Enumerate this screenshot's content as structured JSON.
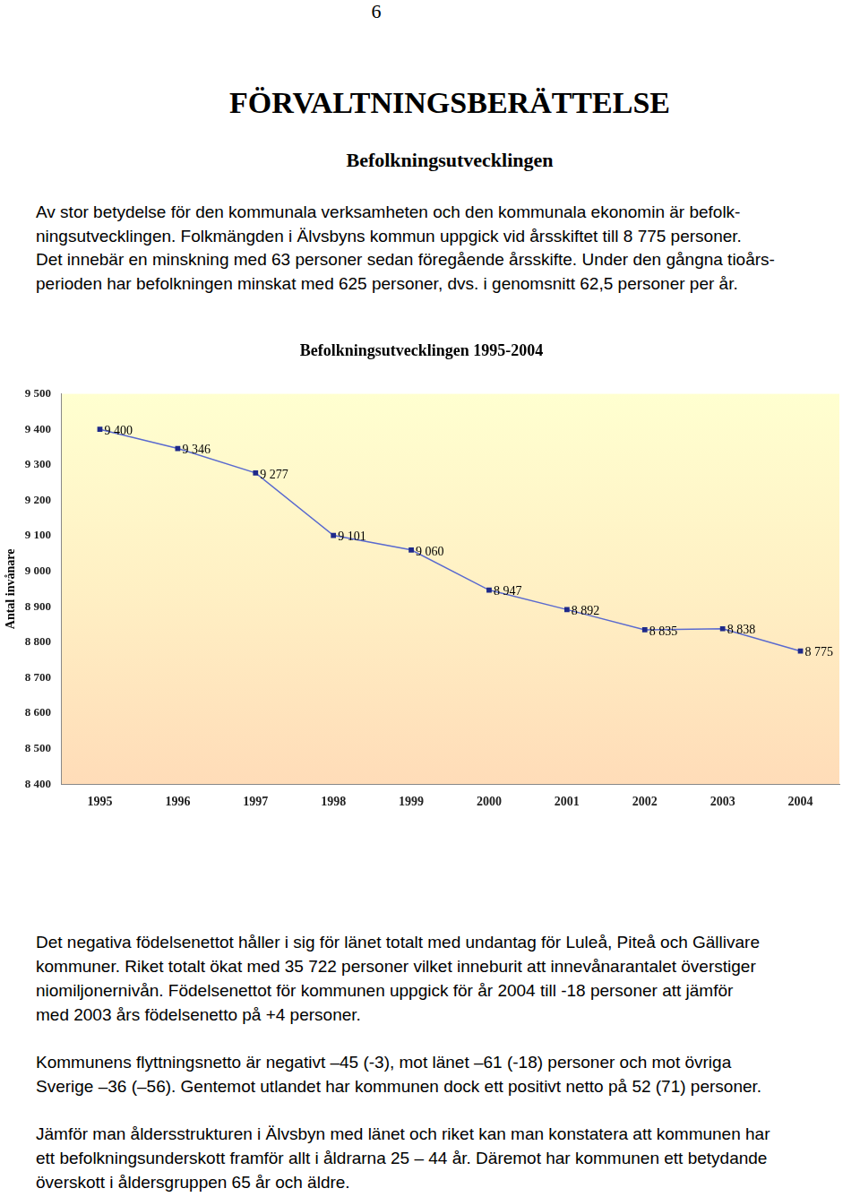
{
  "page_number": "6",
  "header": {
    "title": "FÖRVALTNINGSBERÄTTELSE",
    "subtitle": "Befolkningsutvecklingen"
  },
  "intro": {
    "lines": [
      "Av stor betydelse för den kommunala verksamheten och den kommunala ekonomin är befolk-",
      "ningsutvecklingen. Folkmängden i Älvsbyns kommun uppgick vid årsskiftet till 8 775 personer.",
      "Det innebär en minskning med 63 personer sedan föregående årsskifte. Under den gångna tioårs-",
      "perioden har befolkningen minskat med 625 personer, dvs. i genomsnitt 62,5 personer per år."
    ]
  },
  "chart_data": {
    "type": "line",
    "title": "Befolkningsutvecklingen 1995-2004",
    "y_label": "Antal invånare",
    "categories": [
      "1995",
      "1996",
      "1997",
      "1998",
      "1999",
      "2000",
      "2001",
      "2002",
      "2003",
      "2004"
    ],
    "values": [
      9400,
      9346,
      9277,
      9101,
      9060,
      8947,
      8892,
      8835,
      8838,
      8775
    ],
    "value_labels": [
      "9 400",
      "9 346",
      "9 277",
      "9 101",
      "9 060",
      "8 947",
      "8 892",
      "8 835",
      "8 838",
      "8 775"
    ],
    "color": "#5a6acf",
    "marker": "square",
    "line_style": "solid",
    "data_labels": true,
    "grid": false,
    "ylim": [
      8400,
      9500
    ],
    "yticks": [
      {
        "value": 8400,
        "label": "8 400"
      },
      {
        "value": 8500,
        "label": "8 500"
      },
      {
        "value": 8600,
        "label": "8 600"
      },
      {
        "value": 8700,
        "label": "8 700"
      },
      {
        "value": 8800,
        "label": "8 800"
      },
      {
        "value": 8900,
        "label": "8 900"
      },
      {
        "value": 9000,
        "label": "9 000"
      },
      {
        "value": 9100,
        "label": "9 100"
      },
      {
        "value": 9200,
        "label": "9 200"
      },
      {
        "value": 9300,
        "label": "9 300"
      },
      {
        "value": 9400,
        "label": "9 400"
      },
      {
        "value": 9500,
        "label": "9 500"
      }
    ]
  },
  "body": {
    "paragraphs": [
      {
        "lines": [
          "Det negativa födelsenettot håller i sig för länet totalt med undantag för Luleå, Piteå och Gällivare",
          "kommuner. Riket totalt ökat med 35 722 personer vilket inneburit att innevånarantalet överstiger",
          "niomiljonernivån. Födelsenettot för kommunen uppgick för år 2004 till -18 personer att jämför",
          "med 2003 års födelsenetto på +4 personer."
        ]
      },
      {
        "lines": [
          "Kommunens flyttningsnetto är negativt –45 (-3), mot länet –61 (-18) personer och mot övriga",
          "Sverige –36 (–56). Gentemot utlandet har kommunen dock ett positivt netto på 52 (71) personer."
        ]
      },
      {
        "lines": [
          "Jämför man åldersstrukturen i Älvsbyn med länet och riket kan man konstatera att kommunen har",
          "ett befolkningsunderskott framför allt i åldrarna 25 – 44 år. Däremot har kommunen ett betydande",
          "överskott i åldersgruppen 65 år och äldre."
        ]
      }
    ]
  }
}
